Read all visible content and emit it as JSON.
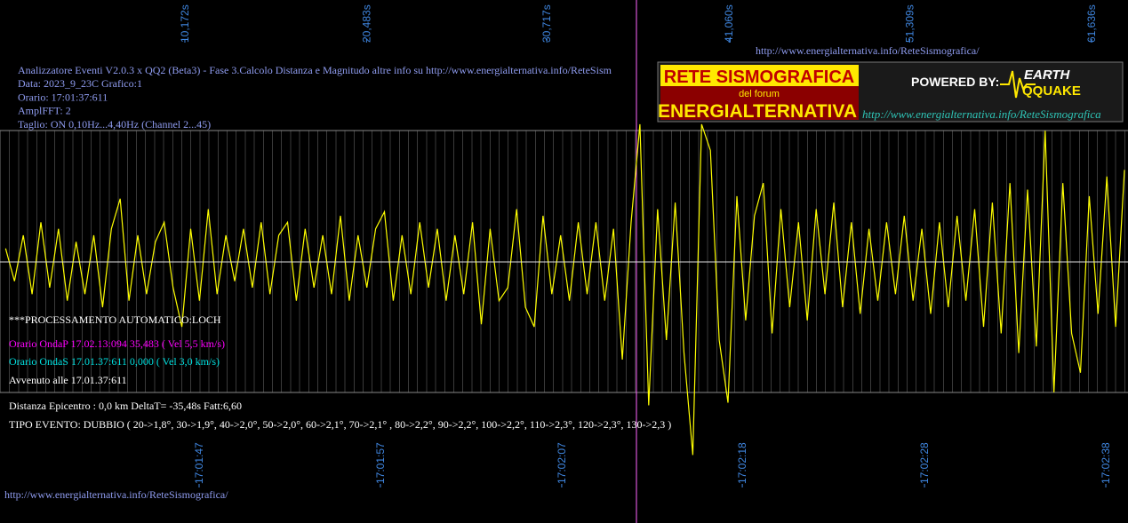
{
  "chart_data": {
    "type": "line",
    "xticks": [
      {
        "value": 10.172,
        "label": "10,172s"
      },
      {
        "value": 20.483,
        "label": "20,483s"
      },
      {
        "value": 30.717,
        "label": "30,717s"
      },
      {
        "value": 41.06,
        "label": "41,060s"
      },
      {
        "value": 51.309,
        "label": "51,309s"
      },
      {
        "value": 61.636,
        "label": "61,636s"
      }
    ],
    "time_ticks": [
      {
        "value": 10.98,
        "label": "17:01:47"
      },
      {
        "value": 21.27,
        "label": "17:01:57"
      },
      {
        "value": 31.56,
        "label": "17:02:07"
      },
      {
        "value": 41.81,
        "label": "17:02:18"
      },
      {
        "value": 52.15,
        "label": "17:02:28"
      },
      {
        "value": 62.44,
        "label": "17:02:38"
      }
    ],
    "xlim": [
      -0.32,
      63.7
    ],
    "ylim": [
      -200,
      200
    ],
    "x": [
      0,
      0.5,
      1,
      1.5,
      2,
      2.5,
      3,
      3.5,
      4,
      4.5,
      5,
      5.5,
      6,
      6.5,
      7,
      7.5,
      8,
      8.5,
      9,
      9.5,
      10,
      10.5,
      11,
      11.5,
      12,
      12.5,
      13,
      13.5,
      14,
      14.5,
      15,
      15.5,
      16,
      16.5,
      17,
      17.5,
      18,
      18.5,
      19,
      19.5,
      20,
      20.5,
      21,
      21.5,
      22,
      22.5,
      23,
      23.5,
      24,
      24.5,
      25,
      25.5,
      26,
      26.5,
      27,
      27.5,
      28,
      28.5,
      29,
      29.5,
      30,
      30.5,
      31,
      31.5,
      32,
      32.5,
      33,
      33.5,
      34,
      34.5,
      35,
      35.5,
      36,
      36.5,
      37,
      37.5,
      38,
      38.5,
      39,
      39.5,
      40,
      40.5,
      41,
      41.5,
      42,
      42.5,
      43,
      43.5,
      44,
      44.5,
      45,
      45.5,
      46,
      46.5,
      47,
      47.5,
      48,
      48.5,
      49,
      49.5,
      50,
      50.5,
      51,
      51.5,
      52,
      52.5,
      53,
      53.5,
      54,
      54.5,
      55,
      55.5,
      56,
      56.5,
      57,
      57.5,
      58,
      58.5,
      59,
      59.5,
      60,
      60.5,
      61,
      61.5,
      62,
      62.5,
      63,
      63.5
    ],
    "series": [
      {
        "color": "#ffff00",
        "values": [
          10,
          -15,
          20,
          -25,
          30,
          -20,
          25,
          -30,
          15,
          -25,
          20,
          -35,
          25,
          48,
          -30,
          20,
          -25,
          15,
          30,
          -20,
          -50,
          25,
          -30,
          40,
          -25,
          20,
          -15,
          25,
          -20,
          30,
          -25,
          20,
          30,
          -30,
          25,
          -20,
          20,
          -25,
          35,
          -30,
          20,
          -20,
          25,
          38,
          -30,
          20,
          -25,
          30,
          -20,
          25,
          -30,
          20,
          -25,
          30,
          -48,
          25,
          -30,
          -20,
          40,
          -35,
          -50,
          35,
          -25,
          20,
          -30,
          30,
          -25,
          30,
          -30,
          25,
          -75,
          30,
          105,
          -110,
          40,
          -60,
          45,
          -70,
          -148,
          105,
          85,
          -60,
          -108,
          50,
          -45,
          35,
          60,
          -55,
          40,
          -35,
          30,
          -45,
          40,
          -25,
          45,
          -35,
          30,
          -40,
          25,
          -30,
          30,
          -25,
          35,
          -30,
          25,
          -40,
          30,
          -35,
          35,
          -30,
          40,
          -50,
          45,
          -55,
          60,
          -70,
          55,
          -65,
          100,
          -100,
          60,
          -55,
          -85,
          50,
          -40,
          65,
          -50,
          70
        ]
      }
    ],
    "header_lines": [
      "Analizzatore Eventi V2.0.3 x QQ2 (Beta3) - Fase 3.Calcolo Distanza e Magnitudo altre info su http://www.energialternativa.info/ReteSism",
      "Data: 2023_9_23C Grafico:1",
      "Orario: 17:01:37:611",
      "AmplFFT: 2",
      "Taglio: ON 0,10Hz...4,40Hz       (Channel 2...45)"
    ],
    "info_lines": [
      {
        "text": "***PROCESSAMENTO AUTOMATICO:LOCH",
        "color": "#ffffff"
      },
      {
        "text": "Orario OndaP 17.02.13:094  35,483 ( Vel 5,5 km/s)",
        "color": "#ff00ff"
      },
      {
        "text": "Orario OndaS 17.01.37:611  0,000 ( Vel 3,0 km/s)",
        "color": "#00e0e0"
      },
      {
        "text": "Avvenuto alle 17.01.37:611",
        "color": "#ffffff"
      },
      {
        "text": "Distanza Epicentro : 0,0 km DeltaT= -35,48s  Fatt:6,60",
        "color": "#ffffff"
      },
      {
        "text": "TIPO EVENTO: DUBBIO ( 20->1,8°, 30->1,9°, 40->2,0°, 50->2,0°, 60->2,1°, 70->2,1° , 80->2,2°, 90->2,2°, 100->2,2°, 110->2,3°, 120->2,3°, 130->2,3 )",
        "color": "#ffffff"
      }
    ],
    "url_top": "http://www.energialternativa.info/ReteSismografica/",
    "url_bottom": "http://www.energialternativa.info/ReteSismografica/",
    "logo": {
      "title": "RETE SISMOGRAFICA",
      "subtitle": "del forum",
      "name": "ENERGIALTERNATIVA",
      "powered": "POWERED BY:",
      "brand_top": "EARTH",
      "brand_bottom": "QQUAKE",
      "url": "http://www.energialternativa.info/ReteSismografica"
    }
  }
}
